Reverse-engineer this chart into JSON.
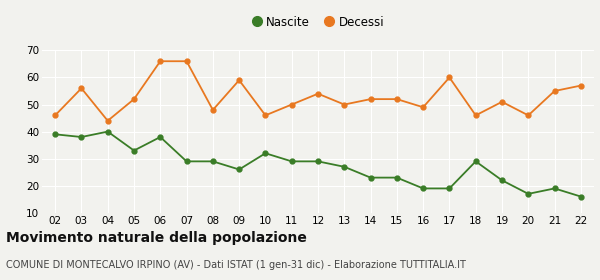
{
  "years": [
    "02",
    "03",
    "04",
    "05",
    "06",
    "07",
    "08",
    "09",
    "10",
    "11",
    "12",
    "13",
    "14",
    "15",
    "16",
    "17",
    "18",
    "19",
    "20",
    "21",
    "22"
  ],
  "nascite": [
    39,
    38,
    40,
    33,
    38,
    29,
    29,
    26,
    32,
    29,
    29,
    27,
    23,
    23,
    19,
    19,
    29,
    22,
    17,
    19,
    16
  ],
  "decessi": [
    46,
    56,
    44,
    52,
    66,
    66,
    48,
    59,
    46,
    50,
    54,
    50,
    52,
    52,
    49,
    60,
    46,
    51,
    46,
    55,
    57
  ],
  "nascite_color": "#3a7d27",
  "decessi_color": "#e87820",
  "bg_color": "#f2f2ee",
  "ylim": [
    10,
    70
  ],
  "yticks": [
    10,
    20,
    30,
    40,
    50,
    60,
    70
  ],
  "title": "Movimento naturale della popolazione",
  "subtitle": "COMUNE DI MONTECALVO IRPINO (AV) - Dati ISTAT (1 gen-31 dic) - Elaborazione TUTTITALIA.IT",
  "title_fontsize": 10,
  "subtitle_fontsize": 7,
  "legend_label_nascite": "Nascite",
  "legend_label_decessi": "Decessi",
  "grid_color": "#ffffff",
  "tick_label_fontsize": 7.5
}
